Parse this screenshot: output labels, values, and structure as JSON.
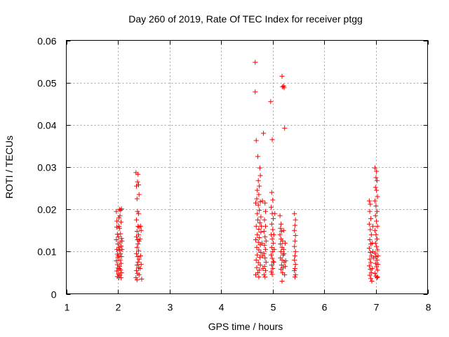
{
  "chart_data": {
    "type": "scatter",
    "title": "Day 260 of 2019, Rate Of TEC Index for receiver ptgg",
    "xlabel": "GPS time / hours",
    "ylabel": "ROTI / TECUs",
    "xlim": [
      1,
      8
    ],
    "ylim": [
      0,
      0.06
    ],
    "xticks": [
      "1",
      "2",
      "3",
      "4",
      "5",
      "6",
      "7",
      "8"
    ],
    "yticks": [
      "0",
      "0.01",
      "0.02",
      "0.03",
      "0.04",
      "0.05",
      "0.06"
    ],
    "grid": true,
    "marker": "+",
    "color": "#ff0000",
    "series": [
      {
        "name": "ROTI",
        "points": [
          [
            1.97,
            0.0195
          ],
          [
            1.98,
            0.0172
          ],
          [
            1.98,
            0.0158
          ],
          [
            1.99,
            0.0141
          ],
          [
            1.97,
            0.0128
          ],
          [
            2.0,
            0.0118
          ],
          [
            1.98,
            0.0105
          ],
          [
            1.99,
            0.0094
          ],
          [
            2.0,
            0.0086
          ],
          [
            1.97,
            0.0078
          ],
          [
            1.99,
            0.0069
          ],
          [
            2.0,
            0.0061
          ],
          [
            1.98,
            0.0054
          ],
          [
            2.01,
            0.0047
          ],
          [
            1.99,
            0.0041
          ],
          [
            2.02,
            0.0038
          ],
          [
            2.03,
            0.02
          ],
          [
            2.05,
            0.0198
          ],
          [
            2.07,
            0.0201
          ],
          [
            2.04,
            0.0185
          ],
          [
            2.06,
            0.017
          ],
          [
            2.03,
            0.0155
          ],
          [
            2.05,
            0.0142
          ],
          [
            2.07,
            0.0131
          ],
          [
            2.04,
            0.0122
          ],
          [
            2.06,
            0.0113
          ],
          [
            2.03,
            0.0103
          ],
          [
            2.05,
            0.0095
          ],
          [
            2.07,
            0.0088
          ],
          [
            2.04,
            0.008
          ],
          [
            2.06,
            0.0072
          ],
          [
            2.03,
            0.0065
          ],
          [
            2.05,
            0.0057
          ],
          [
            2.07,
            0.005
          ],
          [
            2.04,
            0.0044
          ],
          [
            2.06,
            0.0038
          ],
          [
            2.02,
            0.016
          ],
          [
            2.01,
            0.0135
          ],
          [
            2.02,
            0.011
          ],
          [
            2.01,
            0.009
          ],
          [
            2.03,
            0.006
          ],
          [
            2.08,
            0.0105
          ],
          [
            2.08,
            0.0125
          ],
          [
            2.02,
            0.018
          ],
          [
            2.35,
            0.0287
          ],
          [
            2.39,
            0.0283
          ],
          [
            2.38,
            0.0265
          ],
          [
            2.4,
            0.0258
          ],
          [
            2.36,
            0.0255
          ],
          [
            2.41,
            0.0235
          ],
          [
            2.37,
            0.0225
          ],
          [
            2.38,
            0.0195
          ],
          [
            2.4,
            0.019
          ],
          [
            2.36,
            0.0175
          ],
          [
            2.39,
            0.016
          ],
          [
            2.41,
            0.0158
          ],
          [
            2.37,
            0.0148
          ],
          [
            2.4,
            0.014
          ],
          [
            2.36,
            0.0135
          ],
          [
            2.38,
            0.0128
          ],
          [
            2.41,
            0.0125
          ],
          [
            2.39,
            0.0118
          ],
          [
            2.37,
            0.011
          ],
          [
            2.4,
            0.0102
          ],
          [
            2.36,
            0.0095
          ],
          [
            2.38,
            0.0088
          ],
          [
            2.41,
            0.0082
          ],
          [
            2.39,
            0.0075
          ],
          [
            2.37,
            0.0068
          ],
          [
            2.4,
            0.0062
          ],
          [
            2.36,
            0.0055
          ],
          [
            2.38,
            0.0048
          ],
          [
            2.41,
            0.0045
          ],
          [
            2.35,
            0.0038
          ],
          [
            2.37,
            0.0033
          ],
          [
            2.46,
            0.0035
          ],
          [
            2.44,
            0.016
          ],
          [
            2.45,
            0.015
          ],
          [
            2.43,
            0.013
          ],
          [
            2.44,
            0.009
          ],
          [
            2.45,
            0.007
          ],
          [
            2.43,
            0.006
          ],
          [
            4.66,
            0.0548
          ],
          [
            4.66,
            0.0478
          ],
          [
            4.68,
            0.0363
          ],
          [
            4.71,
            0.0325
          ],
          [
            4.75,
            0.0298
          ],
          [
            4.76,
            0.028
          ],
          [
            4.72,
            0.0268
          ],
          [
            4.74,
            0.0255
          ],
          [
            4.7,
            0.0245
          ],
          [
            4.73,
            0.0235
          ],
          [
            4.69,
            0.0225
          ],
          [
            4.76,
            0.0218
          ],
          [
            4.72,
            0.021
          ],
          [
            4.67,
            0.0215
          ],
          [
            4.74,
            0.0198
          ],
          [
            4.7,
            0.019
          ],
          [
            4.77,
            0.0182
          ],
          [
            4.71,
            0.0175
          ],
          [
            4.75,
            0.0168
          ],
          [
            4.68,
            0.016
          ],
          [
            4.73,
            0.0153
          ],
          [
            4.77,
            0.0146
          ],
          [
            4.7,
            0.014
          ],
          [
            4.74,
            0.0133
          ],
          [
            4.67,
            0.0128
          ],
          [
            4.72,
            0.0122
          ],
          [
            4.76,
            0.0116
          ],
          [
            4.69,
            0.011
          ],
          [
            4.73,
            0.0104
          ],
          [
            4.77,
            0.0098
          ],
          [
            4.7,
            0.0092
          ],
          [
            4.75,
            0.0086
          ],
          [
            4.68,
            0.008
          ],
          [
            4.72,
            0.0074
          ],
          [
            4.76,
            0.0068
          ],
          [
            4.69,
            0.0062
          ],
          [
            4.74,
            0.0056
          ],
          [
            4.71,
            0.005
          ],
          [
            4.67,
            0.0045
          ],
          [
            4.73,
            0.004
          ],
          [
            4.79,
            0.012
          ],
          [
            4.8,
            0.009
          ],
          [
            4.81,
            0.006
          ],
          [
            4.78,
            0.016
          ],
          [
            4.8,
            0.022
          ],
          [
            4.82,
            0.038
          ],
          [
            4.85,
            0.0215
          ],
          [
            4.86,
            0.0195
          ],
          [
            4.84,
            0.0175
          ],
          [
            4.86,
            0.016
          ],
          [
            4.83,
            0.0148
          ],
          [
            4.85,
            0.0135
          ],
          [
            4.87,
            0.0125
          ],
          [
            4.84,
            0.0115
          ],
          [
            4.86,
            0.0105
          ],
          [
            4.83,
            0.0095
          ],
          [
            4.85,
            0.0085
          ],
          [
            4.87,
            0.0075
          ],
          [
            4.84,
            0.0065
          ],
          [
            4.86,
            0.0055
          ],
          [
            4.83,
            0.0045
          ],
          [
            4.85,
            0.004
          ],
          [
            4.96,
            0.0455
          ],
          [
            4.99,
            0.0365
          ],
          [
            4.98,
            0.024
          ],
          [
            5.0,
            0.0222
          ],
          [
            4.97,
            0.0205
          ],
          [
            4.99,
            0.019
          ],
          [
            5.01,
            0.0178
          ],
          [
            4.98,
            0.0165
          ],
          [
            5.0,
            0.0152
          ],
          [
            4.97,
            0.014
          ],
          [
            4.99,
            0.013
          ],
          [
            5.01,
            0.012
          ],
          [
            4.98,
            0.011
          ],
          [
            5.0,
            0.01
          ],
          [
            4.97,
            0.0092
          ],
          [
            4.99,
            0.0084
          ],
          [
            5.01,
            0.0076
          ],
          [
            4.98,
            0.0068
          ],
          [
            5.0,
            0.006
          ],
          [
            4.97,
            0.0052
          ],
          [
            4.99,
            0.0046
          ],
          [
            5.02,
            0.014
          ],
          [
            5.03,
            0.0105
          ],
          [
            5.02,
            0.0075
          ],
          [
            5.04,
            0.019
          ],
          [
            5.18,
            0.0515
          ],
          [
            5.21,
            0.0492
          ],
          [
            5.19,
            0.049
          ],
          [
            5.22,
            0.0488
          ],
          [
            5.23,
            0.0392
          ],
          [
            5.14,
            0.0185
          ],
          [
            5.16,
            0.0165
          ],
          [
            5.15,
            0.0155
          ],
          [
            5.17,
            0.0148
          ],
          [
            5.14,
            0.014
          ],
          [
            5.16,
            0.013
          ],
          [
            5.19,
            0.0125
          ],
          [
            5.15,
            0.0118
          ],
          [
            5.18,
            0.011
          ],
          [
            5.21,
            0.0105
          ],
          [
            5.16,
            0.01
          ],
          [
            5.2,
            0.0092
          ],
          [
            5.15,
            0.0085
          ],
          [
            5.18,
            0.008
          ],
          [
            5.22,
            0.0075
          ],
          [
            5.17,
            0.0068
          ],
          [
            5.2,
            0.0062
          ],
          [
            5.16,
            0.0058
          ],
          [
            5.19,
            0.005
          ],
          [
            5.23,
            0.0045
          ],
          [
            5.18,
            0.003
          ],
          [
            5.21,
            0.015
          ],
          [
            5.24,
            0.012
          ],
          [
            5.22,
            0.0095
          ],
          [
            5.25,
            0.0078
          ],
          [
            5.24,
            0.0065
          ],
          [
            5.42,
            0.019
          ],
          [
            5.44,
            0.0175
          ],
          [
            5.43,
            0.0162
          ],
          [
            5.42,
            0.015
          ],
          [
            5.44,
            0.0138
          ],
          [
            5.43,
            0.0125
          ],
          [
            5.42,
            0.0112
          ],
          [
            5.44,
            0.01
          ],
          [
            5.43,
            0.009
          ],
          [
            5.42,
            0.008
          ],
          [
            5.44,
            0.007
          ],
          [
            5.43,
            0.006
          ],
          [
            5.42,
            0.0055
          ],
          [
            5.44,
            0.0045
          ],
          [
            5.43,
            0.004
          ],
          [
            6.98,
            0.0298
          ],
          [
            7.01,
            0.029
          ],
          [
            7.0,
            0.0275
          ],
          [
            7.02,
            0.0268
          ],
          [
            6.99,
            0.0252
          ],
          [
            7.01,
            0.0245
          ],
          [
            7.03,
            0.023
          ],
          [
            6.98,
            0.022
          ],
          [
            7.0,
            0.0208
          ],
          [
            7.02,
            0.0195
          ],
          [
            6.99,
            0.0185
          ],
          [
            7.01,
            0.0172
          ],
          [
            7.03,
            0.016
          ],
          [
            6.98,
            0.015
          ],
          [
            7.0,
            0.014
          ],
          [
            7.02,
            0.013
          ],
          [
            6.99,
            0.012
          ],
          [
            7.01,
            0.0112
          ],
          [
            7.03,
            0.0104
          ],
          [
            6.98,
            0.0096
          ],
          [
            7.0,
            0.0088
          ],
          [
            7.02,
            0.008
          ],
          [
            6.99,
            0.0072
          ],
          [
            7.01,
            0.0064
          ],
          [
            7.03,
            0.0056
          ],
          [
            6.98,
            0.0048
          ],
          [
            7.0,
            0.0042
          ],
          [
            7.02,
            0.0038
          ],
          [
            7.04,
            0.007
          ],
          [
            7.04,
            0.009
          ],
          [
            7.03,
            0.004
          ],
          [
            6.87,
            0.022
          ],
          [
            6.89,
            0.0212
          ],
          [
            6.88,
            0.0195
          ],
          [
            6.9,
            0.0178
          ],
          [
            6.87,
            0.0165
          ],
          [
            6.89,
            0.0152
          ],
          [
            6.91,
            0.014
          ],
          [
            6.88,
            0.0128
          ],
          [
            6.9,
            0.0118
          ],
          [
            6.87,
            0.0108
          ],
          [
            6.89,
            0.0098
          ],
          [
            6.91,
            0.009
          ],
          [
            6.88,
            0.0082
          ],
          [
            6.9,
            0.0074
          ],
          [
            6.87,
            0.0066
          ],
          [
            6.89,
            0.0058
          ],
          [
            6.91,
            0.005
          ],
          [
            6.88,
            0.0044
          ],
          [
            6.9,
            0.0036
          ],
          [
            6.92,
            0.003
          ],
          [
            6.93,
            0.012
          ],
          [
            6.94,
            0.01
          ],
          [
            6.95,
            0.0085
          ],
          [
            6.94,
            0.016
          ],
          [
            6.93,
            0.006
          ]
        ]
      }
    ]
  }
}
